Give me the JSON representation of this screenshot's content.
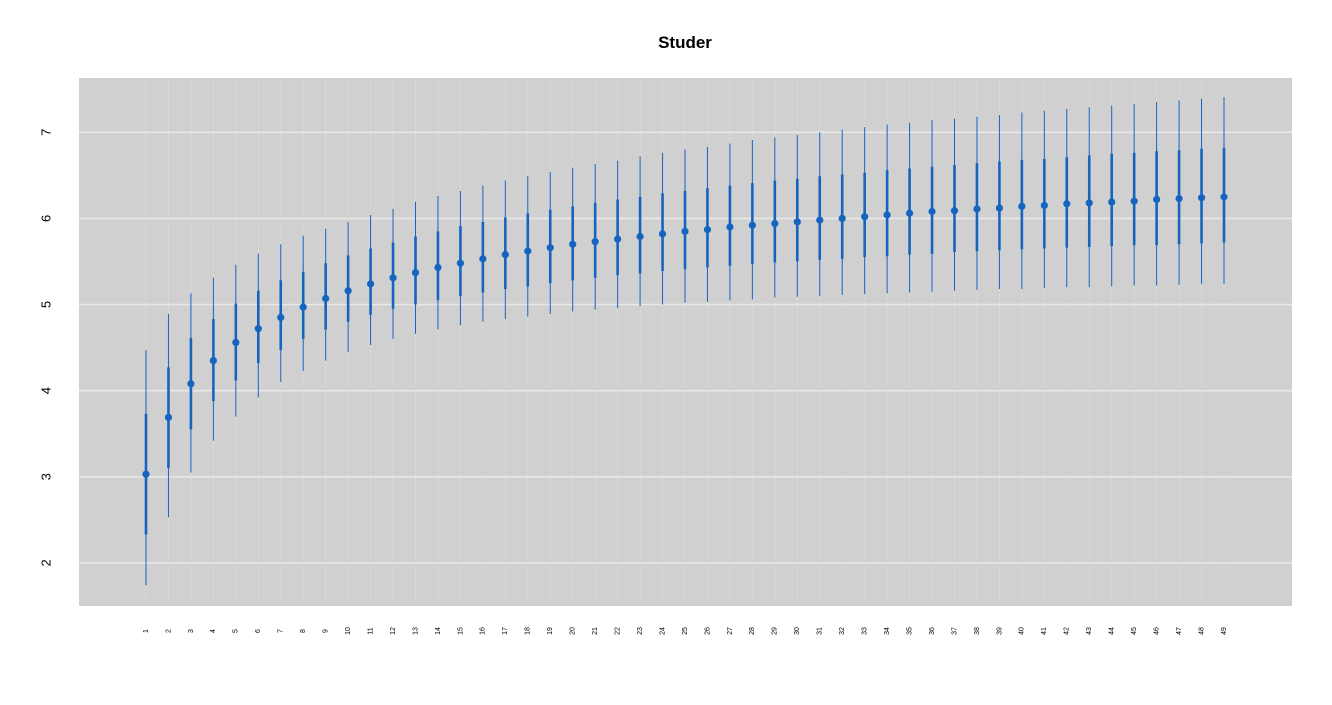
{
  "chart_data": {
    "type": "scatter",
    "title": "Studer",
    "xlabel": "",
    "ylabel": "",
    "categories": [
      "1",
      "2",
      "3",
      "4",
      "5",
      "6",
      "7",
      "8",
      "9",
      "10",
      "11",
      "12",
      "13",
      "14",
      "15",
      "16",
      "17",
      "18",
      "19",
      "20",
      "21",
      "22",
      "23",
      "24",
      "25",
      "26",
      "27",
      "28",
      "29",
      "30",
      "31",
      "32",
      "33",
      "34",
      "35",
      "36",
      "37",
      "38",
      "39",
      "40",
      "41",
      "42",
      "43",
      "44",
      "45",
      "46",
      "47",
      "48",
      "49"
    ],
    "yticks": [
      "2",
      "3",
      "4",
      "5",
      "6",
      "7"
    ],
    "ylim": [
      1.5,
      7.63
    ],
    "grid": true,
    "colors": {
      "panel": "#d0d0d0",
      "grid": "#e8e8e8",
      "series": "#1565c0"
    },
    "series": [
      {
        "median": [
          3.03,
          3.69,
          4.08,
          4.35,
          4.56,
          4.72,
          4.85,
          4.97,
          5.07,
          5.16,
          5.24,
          5.31,
          5.37,
          5.43,
          5.48,
          5.53,
          5.58,
          5.62,
          5.66,
          5.7,
          5.73,
          5.76,
          5.79,
          5.82,
          5.85,
          5.87,
          5.9,
          5.92,
          5.94,
          5.96,
          5.98,
          6.0,
          6.02,
          6.04,
          6.06,
          6.08,
          6.09,
          6.11,
          6.12,
          6.14,
          6.15,
          6.17,
          6.18,
          6.19,
          6.2,
          6.22,
          6.23,
          6.24,
          6.25
        ],
        "inner_low": [
          2.33,
          3.1,
          3.55,
          3.88,
          4.12,
          4.32,
          4.47,
          4.6,
          4.71,
          4.8,
          4.88,
          4.95,
          5.0,
          5.05,
          5.1,
          5.14,
          5.18,
          5.21,
          5.25,
          5.28,
          5.31,
          5.34,
          5.36,
          5.39,
          5.41,
          5.43,
          5.45,
          5.47,
          5.49,
          5.5,
          5.52,
          5.53,
          5.55,
          5.56,
          5.58,
          5.59,
          5.61,
          5.62,
          5.63,
          5.64,
          5.65,
          5.66,
          5.67,
          5.68,
          5.69,
          5.69,
          5.7,
          5.71,
          5.72
        ],
        "inner_high": [
          3.73,
          4.27,
          4.61,
          4.83,
          5.01,
          5.16,
          5.28,
          5.38,
          5.48,
          5.57,
          5.65,
          5.72,
          5.79,
          5.85,
          5.91,
          5.96,
          6.01,
          6.06,
          6.1,
          6.14,
          6.18,
          6.22,
          6.25,
          6.29,
          6.32,
          6.35,
          6.38,
          6.41,
          6.44,
          6.46,
          6.49,
          6.51,
          6.53,
          6.56,
          6.58,
          6.6,
          6.62,
          6.64,
          6.66,
          6.68,
          6.69,
          6.71,
          6.73,
          6.75,
          6.76,
          6.78,
          6.79,
          6.81,
          6.82
        ],
        "outer_low": [
          1.74,
          2.53,
          3.05,
          3.42,
          3.7,
          3.92,
          4.1,
          4.23,
          4.35,
          4.45,
          4.53,
          4.6,
          4.66,
          4.71,
          4.76,
          4.8,
          4.83,
          4.86,
          4.89,
          4.92,
          4.94,
          4.96,
          4.98,
          5.0,
          5.02,
          5.03,
          5.05,
          5.06,
          5.08,
          5.09,
          5.1,
          5.11,
          5.12,
          5.13,
          5.14,
          5.15,
          5.16,
          5.17,
          5.18,
          5.18,
          5.19,
          5.2,
          5.2,
          5.21,
          5.22,
          5.22,
          5.23,
          5.24,
          5.24
        ],
        "outer_high": [
          4.47,
          4.89,
          5.13,
          5.31,
          5.46,
          5.59,
          5.7,
          5.8,
          5.88,
          5.96,
          6.04,
          6.11,
          6.19,
          6.26,
          6.32,
          6.38,
          6.44,
          6.49,
          6.54,
          6.59,
          6.63,
          6.67,
          6.72,
          6.76,
          6.8,
          6.83,
          6.87,
          6.91,
          6.94,
          6.97,
          7.0,
          7.03,
          7.06,
          7.09,
          7.11,
          7.14,
          7.16,
          7.18,
          7.2,
          7.23,
          7.25,
          7.27,
          7.29,
          7.31,
          7.33,
          7.35,
          7.37,
          7.39,
          7.41
        ]
      }
    ]
  }
}
